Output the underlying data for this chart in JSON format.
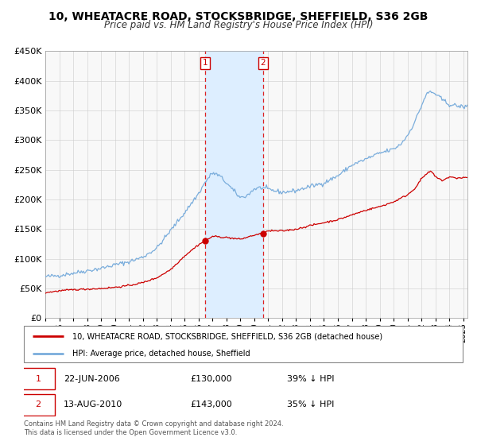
{
  "title": "10, WHEATACRE ROAD, STOCKSBRIDGE, SHEFFIELD, S36 2GB",
  "subtitle": "Price paid vs. HM Land Registry's House Price Index (HPI)",
  "ylim": [
    0,
    450000
  ],
  "xlim_start": 1995.0,
  "xlim_end": 2025.3,
  "yticks": [
    0,
    50000,
    100000,
    150000,
    200000,
    250000,
    300000,
    350000,
    400000,
    450000
  ],
  "transaction1_date": 2006.47,
  "transaction1_price": 130000,
  "transaction1_label": "22-JUN-2006",
  "transaction1_price_str": "£130,000",
  "transaction1_pct": "39% ↓ HPI",
  "transaction2_date": 2010.62,
  "transaction2_price": 143000,
  "transaction2_label": "13-AUG-2010",
  "transaction2_price_str": "£143,000",
  "transaction2_pct": "35% ↓ HPI",
  "property_color": "#cc0000",
  "hpi_color": "#7aaddc",
  "shade_color": "#ddeeff",
  "legend_property": "10, WHEATACRE ROAD, STOCKSBRIDGE, SHEFFIELD, S36 2GB (detached house)",
  "legend_hpi": "HPI: Average price, detached house, Sheffield",
  "footer": "Contains HM Land Registry data © Crown copyright and database right 2024.\nThis data is licensed under the Open Government Licence v3.0.",
  "xticks": [
    1995,
    1996,
    1997,
    1998,
    1999,
    2000,
    2001,
    2002,
    2003,
    2004,
    2005,
    2006,
    2007,
    2008,
    2009,
    2010,
    2011,
    2012,
    2013,
    2014,
    2015,
    2016,
    2017,
    2018,
    2019,
    2020,
    2021,
    2022,
    2023,
    2024,
    2025
  ],
  "bg_color": "#f8f8f8"
}
